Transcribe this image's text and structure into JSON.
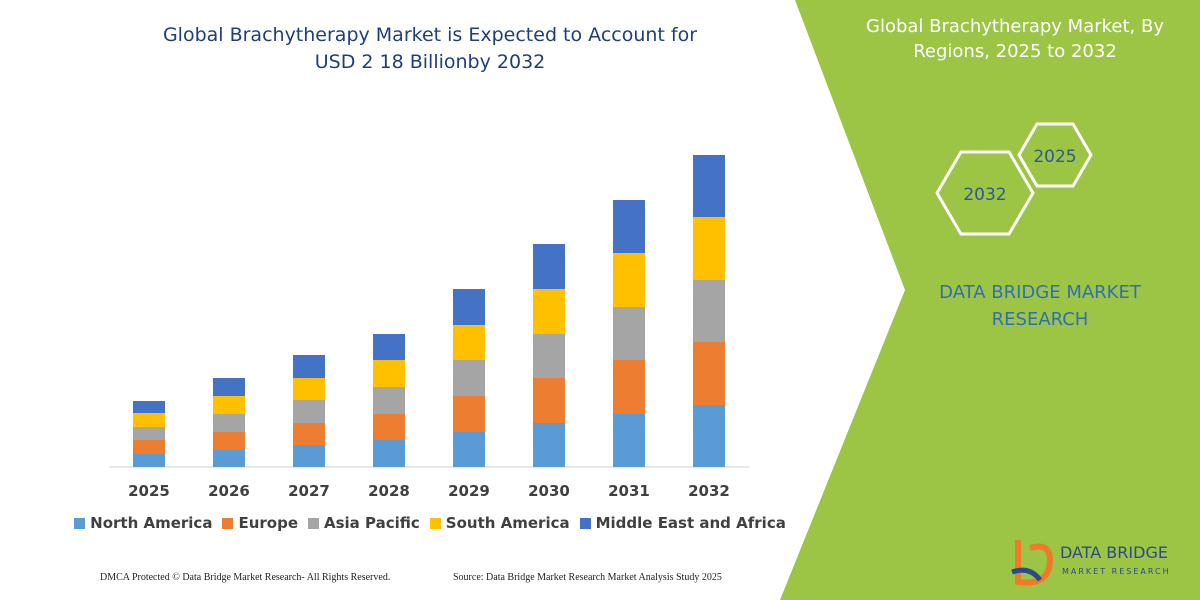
{
  "chart_data": {
    "type": "stacked-bar",
    "title": "Global Brachytherapy Market is Expected to Account for USD 2 18 Billionby 2032",
    "categories": [
      "2025",
      "2026",
      "2027",
      "2028",
      "2029",
      "2030",
      "2031",
      "2032"
    ],
    "series": [
      {
        "name": "North America",
        "color": "#5b9bd5",
        "values": [
          13,
          17,
          22,
          27,
          35,
          44,
          53,
          62
        ]
      },
      {
        "name": "Europe",
        "color": "#ed7d31",
        "values": [
          14,
          18,
          22,
          26,
          36,
          45,
          54,
          63
        ]
      },
      {
        "name": "Asia Pacific",
        "color": "#a5a5a5",
        "values": [
          13,
          18,
          23,
          27,
          36,
          44,
          53,
          62
        ]
      },
      {
        "name": "South America",
        "color": "#ffc000",
        "values": [
          14,
          18,
          22,
          27,
          35,
          45,
          54,
          63
        ]
      },
      {
        "name": "Middle East and Africa",
        "color": "#4472c4",
        "values": [
          12,
          18,
          23,
          26,
          36,
          45,
          53,
          62
        ]
      }
    ],
    "ylim": [
      0,
      320
    ]
  },
  "side_panel": {
    "title": "Global Brachytherapy Market, By Regions, 2025 to 2032",
    "hexagons": [
      "2025",
      "2032"
    ],
    "brand": "DATA BRIDGE MARKET RESEARCH"
  },
  "footer": {
    "dmca": "DMCA Protected © Data Bridge Market Research- All Rights Reserved.",
    "source": "Source: Data Bridge Market Research Market Analysis Study 2025"
  },
  "logo": {
    "name": "DATA BRIDGE",
    "tagline": "MARKET RESEARCH"
  }
}
